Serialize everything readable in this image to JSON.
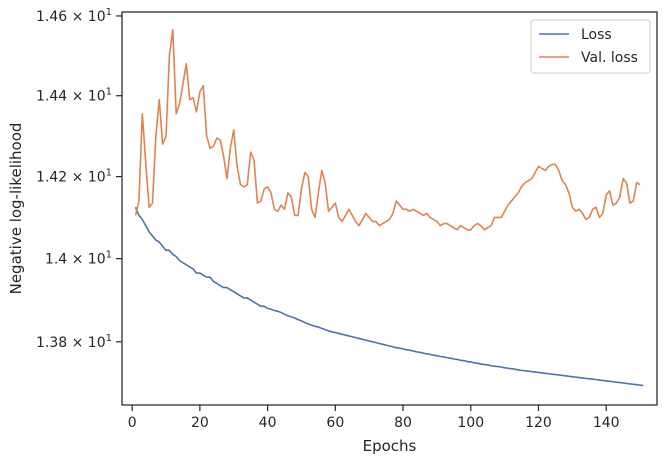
{
  "chart_data": {
    "type": "line",
    "xlabel": "Epochs",
    "ylabel": "Negative log-likelihood",
    "xlim": [
      -3,
      155
    ],
    "ylim": [
      13.65,
      14.61
    ],
    "yscale": "log",
    "grid": false,
    "legend_position": "top-right",
    "x_ticks": [
      0,
      20,
      40,
      60,
      80,
      100,
      120,
      140
    ],
    "y_ticks": [
      {
        "value": 13.8,
        "mantissa": "1.38",
        "base": "× 10",
        "exponent": "1"
      },
      {
        "value": 14.0,
        "mantissa": "1.4",
        "base": "× 10",
        "exponent": "1"
      },
      {
        "value": 14.2,
        "mantissa": "1.42",
        "base": "× 10",
        "exponent": "1"
      },
      {
        "value": 14.4,
        "mantissa": "1.44",
        "base": "× 10",
        "exponent": "1"
      },
      {
        "value": 14.6,
        "mantissa": "1.46",
        "base": "× 10",
        "exponent": "1"
      }
    ],
    "series": [
      {
        "name": "Loss",
        "color": "#4c72b0",
        "x_start": 1,
        "x_step": 1,
        "values": [
          14.125,
          14.105,
          14.095,
          14.08,
          14.065,
          14.055,
          14.045,
          14.04,
          14.03,
          14.02,
          14.02,
          14.01,
          14.005,
          13.995,
          13.99,
          13.985,
          13.98,
          13.975,
          13.965,
          13.965,
          13.96,
          13.955,
          13.955,
          13.945,
          13.94,
          13.935,
          13.93,
          13.93,
          13.925,
          13.92,
          13.915,
          13.91,
          13.905,
          13.905,
          13.9,
          13.895,
          13.89,
          13.885,
          13.885,
          13.88,
          13.878,
          13.875,
          13.873,
          13.87,
          13.866,
          13.862,
          13.86,
          13.857,
          13.853,
          13.85,
          13.846,
          13.843,
          13.84,
          13.837,
          13.835,
          13.832,
          13.829,
          13.826,
          13.824,
          13.822,
          13.82,
          13.818,
          13.816,
          13.814,
          13.812,
          13.81,
          13.808,
          13.806,
          13.804,
          13.802,
          13.8,
          13.798,
          13.796,
          13.794,
          13.792,
          13.79,
          13.788,
          13.786,
          13.785,
          13.783,
          13.781,
          13.78,
          13.778,
          13.776,
          13.775,
          13.773,
          13.771,
          13.77,
          13.768,
          13.767,
          13.765,
          13.764,
          13.762,
          13.761,
          13.759,
          13.758,
          13.756,
          13.755,
          13.753,
          13.752,
          13.75,
          13.749,
          13.747,
          13.746,
          13.745,
          13.743,
          13.742,
          13.741,
          13.74,
          13.738,
          13.737,
          13.736,
          13.735,
          13.733,
          13.732,
          13.731,
          13.73,
          13.729,
          13.728,
          13.727,
          13.726,
          13.725,
          13.724,
          13.723,
          13.722,
          13.721,
          13.72,
          13.719,
          13.718,
          13.717,
          13.716,
          13.715,
          13.714,
          13.713,
          13.712,
          13.711,
          13.71,
          13.709,
          13.708,
          13.707,
          13.706,
          13.705,
          13.704,
          13.703,
          13.702,
          13.701,
          13.7,
          13.699,
          13.698,
          13.697,
          13.696
        ]
      },
      {
        "name": "Val. loss",
        "color": "#dd8452",
        "x_start": 1,
        "x_step": 1,
        "values": [
          14.105,
          14.14,
          14.355,
          14.235,
          14.125,
          14.135,
          14.3,
          14.39,
          14.28,
          14.3,
          14.5,
          14.565,
          14.355,
          14.38,
          14.43,
          14.48,
          14.39,
          14.395,
          14.36,
          14.41,
          14.425,
          14.3,
          14.27,
          14.275,
          14.295,
          14.29,
          14.25,
          14.195,
          14.27,
          14.315,
          14.225,
          14.18,
          14.175,
          14.18,
          14.26,
          14.24,
          14.135,
          14.14,
          14.17,
          14.175,
          14.16,
          14.12,
          14.115,
          14.13,
          14.12,
          14.16,
          14.15,
          14.105,
          14.105,
          14.17,
          14.21,
          14.2,
          14.12,
          14.1,
          14.16,
          14.215,
          14.185,
          14.115,
          14.125,
          14.135,
          14.1,
          14.09,
          14.105,
          14.12,
          14.105,
          14.09,
          14.08,
          14.095,
          14.11,
          14.1,
          14.09,
          14.09,
          14.08,
          14.085,
          14.09,
          14.095,
          14.11,
          14.14,
          14.13,
          14.12,
          14.12,
          14.115,
          14.12,
          14.115,
          14.11,
          14.105,
          14.11,
          14.1,
          14.095,
          14.09,
          14.08,
          14.085,
          14.085,
          14.08,
          14.075,
          14.07,
          14.08,
          14.075,
          14.07,
          14.07,
          14.08,
          14.085,
          14.08,
          14.07,
          14.075,
          14.08,
          14.1,
          14.1,
          14.1,
          14.115,
          14.13,
          14.14,
          14.15,
          14.16,
          14.175,
          14.185,
          14.19,
          14.195,
          14.21,
          14.225,
          14.22,
          14.215,
          14.225,
          14.23,
          14.23,
          14.215,
          14.19,
          14.18,
          14.16,
          14.125,
          14.115,
          14.12,
          14.11,
          14.095,
          14.1,
          14.12,
          14.125,
          14.1,
          14.11,
          14.155,
          14.165,
          14.13,
          14.135,
          14.15,
          14.195,
          14.185,
          14.135,
          14.14,
          14.185,
          14.18
        ]
      }
    ]
  }
}
